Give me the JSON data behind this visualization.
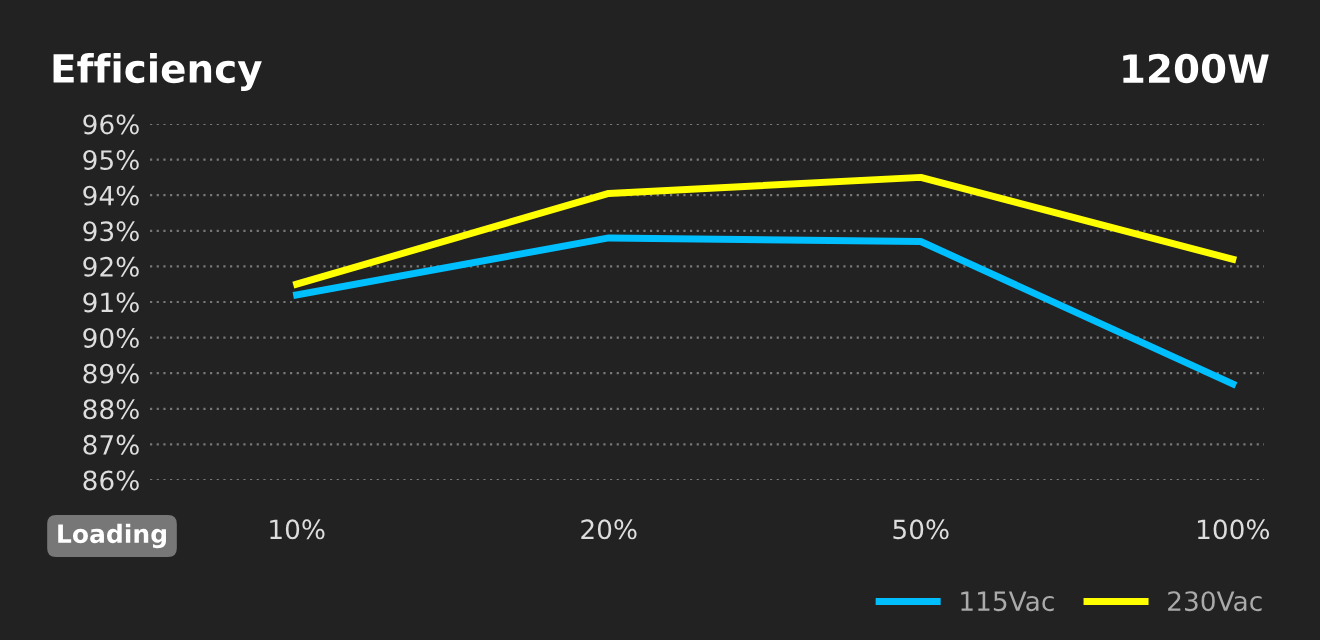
{
  "chart_data": {
    "type": "line",
    "title": "Efficiency",
    "subtitle": "1200W",
    "xlabel": "Loading",
    "categories": [
      "10%",
      "20%",
      "50%",
      "100%"
    ],
    "series": [
      {
        "name": "115Vac",
        "color": "#00bfff",
        "values": [
          91.2,
          92.8,
          92.7,
          88.7
        ]
      },
      {
        "name": "230Vac",
        "color": "#ffff00",
        "values": [
          91.5,
          94.05,
          94.5,
          92.2
        ]
      }
    ],
    "ylim": [
      86,
      96
    ],
    "yticks": [
      {
        "value": 86,
        "label": "86%"
      },
      {
        "value": 87,
        "label": "87%"
      },
      {
        "value": 88,
        "label": "88%"
      },
      {
        "value": 89,
        "label": "89%"
      },
      {
        "value": 90,
        "label": "90%"
      },
      {
        "value": 91,
        "label": "91%"
      },
      {
        "value": 92,
        "label": "92%"
      },
      {
        "value": 93,
        "label": "93%"
      },
      {
        "value": 94,
        "label": "94%"
      },
      {
        "value": 95,
        "label": "95%"
      },
      {
        "value": 96,
        "label": "96%"
      }
    ],
    "grid": "y",
    "legend": "bottom right",
    "marker": "none",
    "line_style": "solid"
  }
}
